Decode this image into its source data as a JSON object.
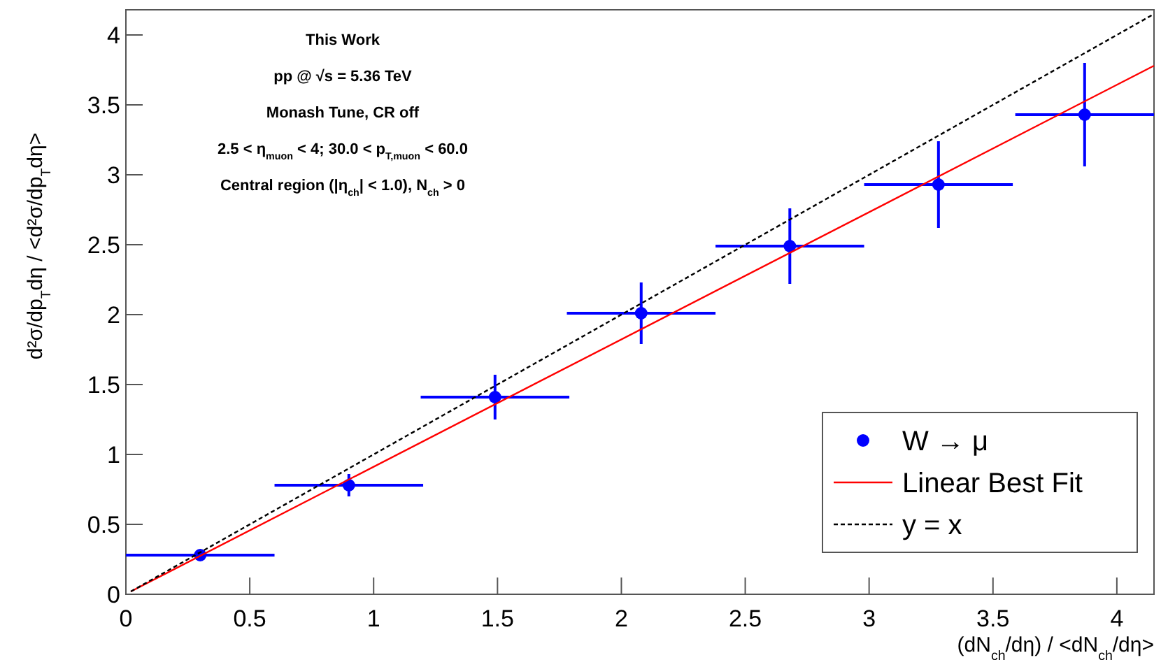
{
  "chart_data": {
    "type": "scatter",
    "xlabel": "(dN$_{ch}$/dη) / <dN$_{ch}$/dη>",
    "ylabel": "d²σ/dp$_{T}$dη / <d²σ/dp$_{T}$dη>",
    "annotations": [
      "This Work",
      "pp @ √s = 5.36 TeV",
      "Monash Tune, CR off",
      "2.5 < η$_{muon}$ < 4; 30.0 < p$_{T,muon}$ < 60.0",
      "Central region (|η$_{ch}$| < 1.0), N$_{ch}$ > 0"
    ],
    "xlim": [
      0,
      4.15
    ],
    "ylim": [
      0,
      4.18
    ],
    "xticks": [
      0,
      0.5,
      1,
      1.5,
      2,
      2.5,
      3,
      3.5,
      4
    ],
    "yticks": [
      0,
      0.5,
      1,
      1.5,
      2,
      2.5,
      3,
      3.5,
      4
    ],
    "grid": false,
    "legend": "bottom right",
    "series": [
      {
        "name": "W → μ",
        "color": "#0000ff",
        "marker": "circle",
        "x": [
          0.3,
          0.9,
          1.49,
          2.08,
          2.68,
          3.28,
          3.87
        ],
        "values": [
          0.28,
          0.78,
          1.41,
          2.01,
          2.49,
          2.93,
          3.43
        ],
        "errors": [
          0.02,
          0.08,
          0.16,
          0.22,
          0.27,
          0.31,
          0.37
        ],
        "xerrors": [
          0.3,
          0.3,
          0.3,
          0.3,
          0.3,
          0.3,
          0.28
        ]
      },
      {
        "name": "Linear Best Fit",
        "type": "line",
        "color": "#ff0000",
        "line_style": "solid",
        "x": [
          0.02,
          4.15
        ],
        "values": [
          0.02,
          3.78
        ]
      },
      {
        "name": "y = x",
        "type": "line",
        "color": "#000000",
        "line_style": "dashed",
        "x": [
          0.02,
          4.15
        ],
        "values": [
          0.02,
          4.15
        ]
      }
    ]
  }
}
